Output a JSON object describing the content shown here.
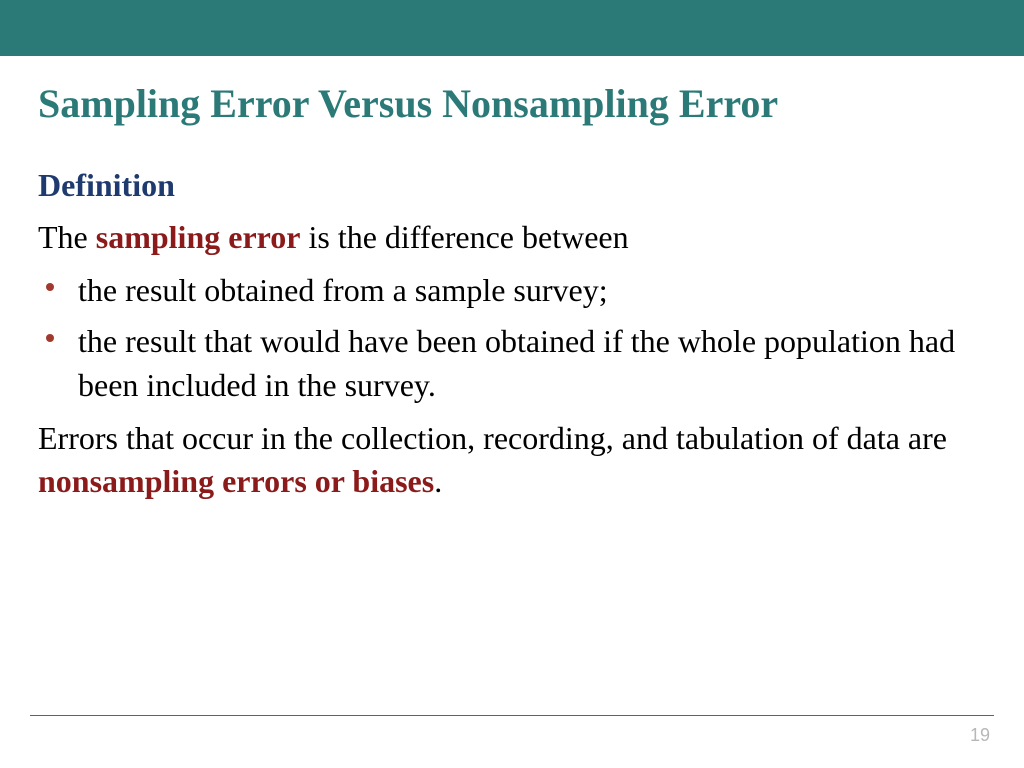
{
  "colors": {
    "teal": "#2b7a78",
    "navy": "#1f3a6e",
    "maroon": "#8b1a1a",
    "bullet": "#a03a2e",
    "footer_line": "#2b7a78",
    "page_num": "#b7b7b7",
    "body_text": "#000000",
    "background": "#ffffff"
  },
  "title": "Sampling Error Versus Nonsampling Error",
  "subheading": "Definition",
  "intro": {
    "pre": "The ",
    "term": "sampling error",
    "post": " is the difference between"
  },
  "bullets": {
    "0": "the result obtained from a sample survey;",
    "1": "the result that would have been obtained if the whole population had been included in the survey."
  },
  "closing": {
    "pre": "Errors that occur in the collection, recording, and tabulation of data are ",
    "term": "nonsampling errors or biases",
    "post": "."
  },
  "page_number": "19"
}
